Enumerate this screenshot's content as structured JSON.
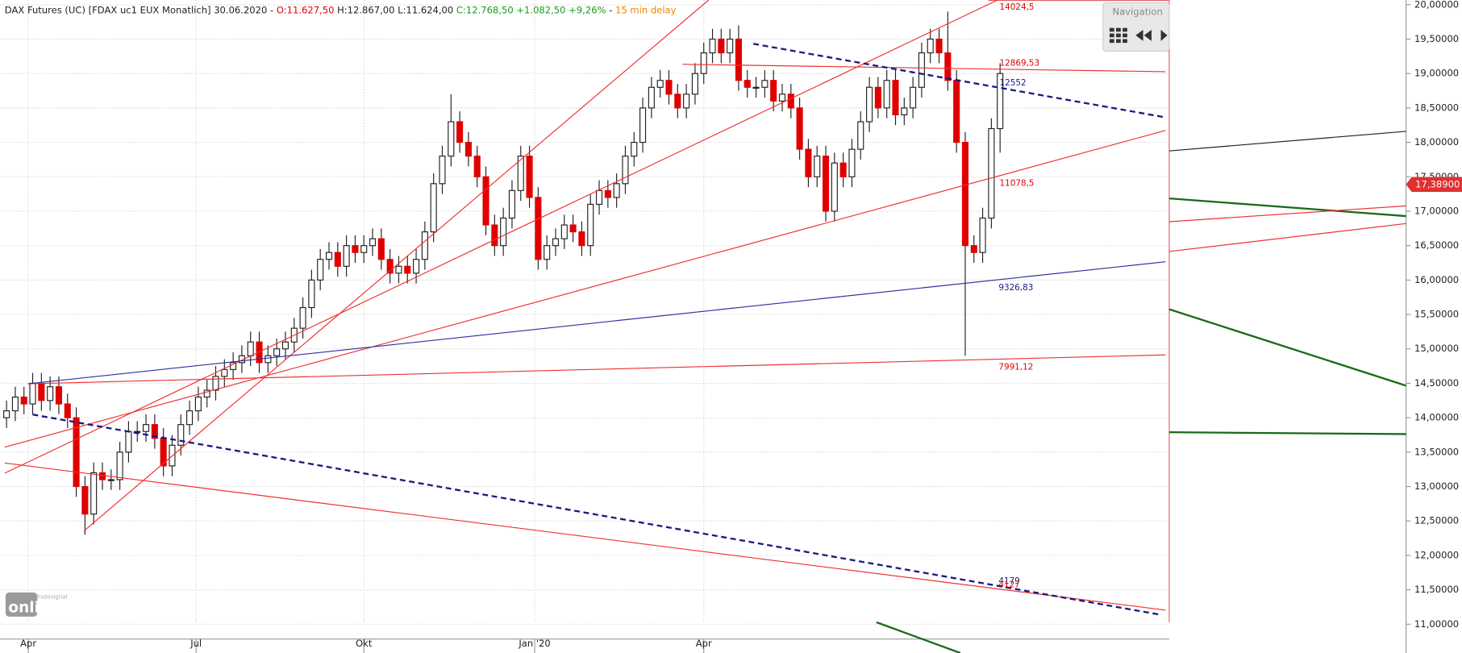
{
  "chart_data": {
    "type": "candlestick",
    "title": "DAX Futures (UC) [FDAX uc1 EUX Monatlich] 30.06.2020",
    "header_quote": {
      "open": "O:11.627,50",
      "high": "H:12.867,00",
      "low": "L:11.624,00",
      "close": "C:12.768,50",
      "change": "+1.082,50",
      "change_pct": "+9,26%",
      "delay": "15 min delay"
    },
    "navigation": "Navigation",
    "logo": {
      "tagline": "Tradesignal",
      "name": "online"
    },
    "last_price": {
      "value": 17389,
      "label": "17,38900"
    },
    "annotations": [
      "14024,5",
      "12869,53",
      "12552",
      "11078,5",
      "9326,83",
      "7991,12",
      "4179",
      "4127"
    ],
    "xlim": [
      -0.75,
      167
    ],
    "xticks": [
      {
        "value": 2.5,
        "label": "Apr"
      },
      {
        "value": 21.75,
        "label": "Jul"
      },
      {
        "value": 41,
        "label": "Okt"
      },
      {
        "value": 60.6,
        "label": "Jan '20"
      },
      {
        "value": 80,
        "label": "Apr"
      }
    ],
    "ylim": [
      10582,
      20068
    ],
    "yticks": [
      {
        "value": 20000,
        "label": "20,00000"
      },
      {
        "value": 19500,
        "label": "19,50000"
      },
      {
        "value": 19000,
        "label": "19,00000"
      },
      {
        "value": 18500,
        "label": "18,50000"
      },
      {
        "value": 18000,
        "label": "18,00000"
      },
      {
        "value": 17500,
        "label": "17,50000"
      },
      {
        "value": 17000,
        "label": "17,00000"
      },
      {
        "value": 16500,
        "label": "16,50000"
      },
      {
        "value": 16000,
        "label": "16,00000"
      },
      {
        "value": 15500,
        "label": "15,50000"
      },
      {
        "value": 15000,
        "label": "15,00000"
      },
      {
        "value": 14500,
        "label": "14,50000"
      },
      {
        "value": 14000,
        "label": "14,00000"
      },
      {
        "value": 13500,
        "label": "13,50000"
      },
      {
        "value": 13000,
        "label": "13,00000"
      },
      {
        "value": 12500,
        "label": "12,50000"
      },
      {
        "value": 12000,
        "label": "12,00000"
      },
      {
        "value": 11500,
        "label": "11,50000"
      },
      {
        "value": 11000,
        "label": "11,00000"
      }
    ],
    "grid": true,
    "up_color": "#ffffff",
    "down_color": "#e00000",
    "open": [
      14000,
      14100,
      14300,
      14200,
      14500,
      14250,
      14450,
      14200,
      14000,
      13000,
      12600,
      13200,
      13100,
      13100,
      13500,
      13800,
      13800,
      13900,
      13700,
      13300,
      13600,
      13900,
      14100,
      14300,
      14400,
      14600,
      14700,
      14800,
      14900,
      15100,
      14800,
      14900,
      15000,
      15100,
      15300,
      15600,
      16000,
      16300,
      16400,
      16200,
      16500,
      16400,
      16500,
      16600,
      16300,
      16100,
      16200,
      16100,
      16300,
      16700,
      17400,
      17800,
      18300,
      18000,
      17800,
      17500,
      16800,
      16500,
      16900,
      17300,
      17800,
      17200,
      16300,
      16500,
      16600,
      16800,
      16700,
      16500,
      17100,
      17300,
      17200,
      17400,
      17800,
      18000,
      18500,
      18800,
      18900,
      18700,
      18500,
      18700,
      19000,
      19300,
      19500,
      19300,
      19500,
      18900,
      18800,
      18800,
      18900,
      18600,
      18700,
      18500,
      17900,
      17500,
      17800,
      17000,
      17700,
      17500,
      17900,
      18300,
      18800,
      18500,
      18900,
      18400,
      18500,
      18800,
      19300,
      19500,
      19300,
      18900,
      18000,
      16500,
      16400,
      16900,
      18200
    ],
    "high": [
      14250,
      14450,
      14450,
      14650,
      14650,
      14600,
      14600,
      14350,
      14150,
      13150,
      13350,
      13350,
      13250,
      13650,
      13950,
      13950,
      14050,
      14050,
      13850,
      13750,
      14050,
      14250,
      14450,
      14550,
      14750,
      14850,
      14950,
      15050,
      15250,
      15250,
      15050,
      15150,
      15250,
      15450,
      15750,
      16150,
      16450,
      16550,
      16550,
      16650,
      16650,
      16650,
      16750,
      16750,
      16450,
      16350,
      16350,
      16450,
      16850,
      17550,
      17950,
      18700,
      18450,
      18150,
      17950,
      17650,
      16950,
      17050,
      17450,
      17950,
      17950,
      17350,
      16650,
      16750,
      16950,
      16950,
      16850,
      17250,
      17450,
      17450,
      17550,
      17950,
      18150,
      18650,
      18950,
      19050,
      19050,
      18850,
      18850,
      19150,
      19450,
      19650,
      19650,
      19650,
      19700,
      19050,
      18950,
      19050,
      19050,
      18850,
      18850,
      18650,
      18050,
      17950,
      17950,
      17850,
      17850,
      18050,
      18450,
      18950,
      18950,
      19050,
      19050,
      18650,
      18950,
      19450,
      19650,
      19650,
      19900,
      19050,
      18150,
      16650,
      17050,
      18350,
      19150
    ],
    "low": [
      13850,
      13950,
      14050,
      14050,
      14100,
      14100,
      14050,
      13850,
      12850,
      12300,
      12450,
      12950,
      12950,
      12950,
      13350,
      13650,
      13650,
      13550,
      13150,
      13150,
      13450,
      13750,
      13950,
      14150,
      14250,
      14450,
      14550,
      14650,
      14750,
      14650,
      14650,
      14750,
      14850,
      14950,
      15150,
      15450,
      15850,
      16150,
      16050,
      16050,
      16250,
      16250,
      16350,
      16150,
      15950,
      15950,
      15950,
      15950,
      16150,
      16550,
      17250,
      17650,
      17850,
      17650,
      17350,
      16650,
      16350,
      16350,
      16750,
      17150,
      17050,
      16150,
      16150,
      16350,
      16450,
      16550,
      16350,
      16350,
      16950,
      17050,
      17050,
      17250,
      17650,
      17850,
      18350,
      18650,
      18550,
      18350,
      18350,
      18550,
      18850,
      19150,
      19150,
      19150,
      18750,
      18650,
      18650,
      18650,
      18450,
      18450,
      18350,
      17750,
      17350,
      17350,
      16850,
      16850,
      17350,
      17350,
      17750,
      18150,
      18350,
      18350,
      18250,
      18250,
      18350,
      18650,
      19150,
      19150,
      18750,
      17850,
      14900,
      16250,
      16250,
      16750,
      17850
    ],
    "close": [
      14100,
      14300,
      14200,
      14500,
      14250,
      14450,
      14200,
      14000,
      13000,
      12600,
      13200,
      13100,
      13100,
      13500,
      13800,
      13800,
      13900,
      13700,
      13300,
      13600,
      13900,
      14100,
      14300,
      14400,
      14600,
      14700,
      14800,
      14900,
      15100,
      14800,
      14900,
      15000,
      15100,
      15300,
      15600,
      16000,
      16300,
      16400,
      16200,
      16500,
      16400,
      16500,
      16600,
      16300,
      16100,
      16200,
      16100,
      16300,
      16700,
      17400,
      17800,
      18300,
      18000,
      17800,
      17500,
      16800,
      16500,
      16900,
      17300,
      17800,
      17200,
      16300,
      16500,
      16600,
      16800,
      16700,
      16500,
      17100,
      17300,
      17200,
      17400,
      17800,
      18000,
      18500,
      18800,
      18900,
      18700,
      18500,
      18700,
      19000,
      19300,
      19500,
      19300,
      19500,
      18900,
      18800,
      18800,
      18900,
      18600,
      18700,
      18500,
      17900,
      17500,
      17800,
      17000,
      17700,
      17500,
      17900,
      18300,
      18800,
      18500,
      18900,
      18400,
      18500,
      18800,
      19300,
      19500,
      19300,
      18900,
      18000,
      16500,
      16400,
      16900,
      18200,
      19000
    ]
  }
}
